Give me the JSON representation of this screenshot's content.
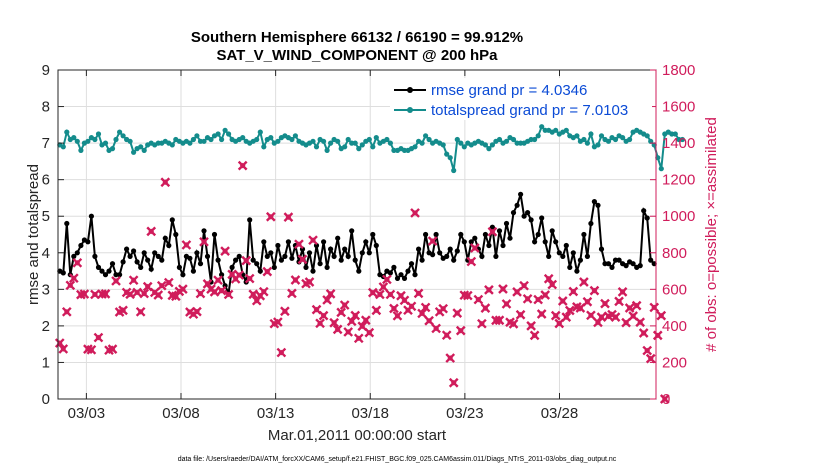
{
  "chart_data": {
    "type": "line",
    "title": "Southern Hemisphere 66132 / 66190 = 99.912%",
    "subtitle": "SAT_V_WIND_COMPONENT @ 200 hPa",
    "xlabel": "Mar.01,2011 00:00:00 start",
    "ylabel": "rmse and totalspread",
    "ylabel_right": "# of obs: o=possible; ×=assimilated",
    "footnote": "data file: /Users/raeder/DAI/ATM_forcXX/CAM6_setup/f.e21.FHIST_BGC.f09_025.CAM6assim.011/Diags_NTrS_2011-03/obs_diag_output.nc",
    "xlim": [
      1.5,
      33.1
    ],
    "ylim": [
      0,
      9
    ],
    "ylim_right": [
      0,
      1800
    ],
    "x_ticks": [
      3,
      8,
      13,
      18,
      23,
      28
    ],
    "x_tick_labels": [
      "03/03",
      "03/08",
      "03/13",
      "03/18",
      "03/23",
      "03/28"
    ],
    "y_ticks": [
      0,
      1,
      2,
      3,
      4,
      5,
      6,
      7,
      8,
      9
    ],
    "y_ticks_right": [
      0,
      200,
      400,
      600,
      800,
      1000,
      1200,
      1400,
      1600,
      1800
    ],
    "grid": true,
    "legend_position": "top-right",
    "colors": {
      "rmse": "#000000",
      "spread": "#148c8c",
      "obs": "#d01c5b",
      "axis": "#262626",
      "legend_text": "#0b4bd6"
    },
    "series": [
      {
        "name": "rmse grand pr = 4.0346",
        "axis": "left",
        "style": "line-marker",
        "values": [
          3.5,
          3.45,
          4.8,
          3.4,
          3.9,
          4.0,
          4.2,
          4.35,
          4.3,
          5.0,
          3.9,
          3.6,
          3.5,
          3.4,
          3.5,
          3.7,
          3.4,
          3.4,
          3.75,
          4.1,
          3.9,
          4.05,
          3.75,
          3.6,
          4.0,
          3.8,
          3.55,
          4.0,
          3.9,
          3.8,
          4.4,
          4.2,
          4.9,
          4.5,
          3.6,
          3.4,
          3.9,
          3.85,
          3.5,
          4.0,
          3.7,
          4.6,
          3.9,
          3.2,
          4.5,
          3.8,
          3.4,
          3.1,
          2.9,
          3.6,
          3.8,
          3.9,
          3.4,
          3.2,
          4.9,
          3.8,
          3.7,
          3.5,
          4.3,
          3.9,
          4.0,
          3.6,
          4.2,
          3.8,
          3.9,
          4.3,
          3.85,
          4.2,
          3.75,
          4.1,
          3.6,
          4.0,
          3.5,
          4.2,
          3.7,
          4.3,
          3.6,
          4.1,
          3.9,
          4.4,
          3.8,
          4.1,
          3.9,
          4.6,
          3.8,
          3.5,
          4.0,
          4.3,
          4.0,
          4.5,
          4.2,
          3.4,
          3.35,
          3.5,
          3.45,
          3.6,
          3.3,
          3.4,
          3.3,
          3.5,
          3.7,
          3.4,
          4.1,
          3.8,
          4.5,
          4.0,
          3.95,
          4.5,
          4.0,
          3.85,
          3.9,
          4.1,
          3.8,
          4.05,
          4.5,
          4.3,
          3.8,
          4.3,
          4.4,
          4.1,
          3.9,
          4.5,
          4.2,
          4.7,
          3.9,
          4.6,
          4.2,
          4.8,
          4.4,
          5.1,
          5.3,
          5.6,
          5.0,
          5.1,
          4.9,
          4.3,
          4.5,
          4.95,
          4.3,
          3.9,
          4.6,
          4.3,
          4.0,
          3.9,
          4.2,
          3.6,
          4.0,
          3.5,
          3.8,
          4.5,
          3.9,
          4.8,
          5.4,
          5.3,
          4.1,
          3.7,
          3.7,
          3.6,
          3.8,
          3.8,
          3.7,
          3.65,
          3.75,
          3.7,
          3.6,
          3.65,
          5.15,
          4.95,
          3.8,
          3.7
        ]
      },
      {
        "name": "totalspread grand pr = 7.0103",
        "axis": "left",
        "style": "line-marker",
        "values": [
          6.95,
          6.9,
          7.3,
          7.1,
          7.15,
          7.05,
          6.8,
          7.0,
          7.05,
          7.15,
          7.1,
          7.25,
          6.95,
          7.0,
          6.8,
          6.85,
          7.1,
          7.3,
          7.2,
          7.1,
          7.05,
          6.75,
          6.85,
          6.9,
          6.8,
          6.95,
          7.0,
          6.95,
          7.0,
          7.0,
          7.05,
          7.0,
          6.95,
          7.1,
          7.05,
          7.0,
          7.05,
          7.0,
          7.1,
          7.2,
          7.05,
          7.05,
          7.15,
          7.1,
          7.2,
          7.25,
          7.1,
          7.35,
          7.25,
          7.1,
          7.05,
          7.1,
          7.15,
          7.05,
          7.0,
          7.05,
          7.1,
          7.3,
          6.9,
          7.1,
          7.15,
          7.0,
          7.05,
          7.15,
          7.2,
          7.15,
          7.1,
          7.2,
          7.05,
          7.0,
          6.95,
          7.0,
          7.05,
          6.9,
          7.1,
          7.05,
          6.8,
          7.0,
          7.1,
          7.05,
          6.85,
          6.9,
          7.1,
          7.0,
          7.0,
          6.85,
          6.95,
          7.05,
          7.1,
          6.9,
          7.15,
          7.0,
          7.05,
          7.1,
          7.0,
          6.8,
          6.8,
          6.85,
          6.8,
          6.8,
          6.85,
          6.9,
          7.05,
          7.0,
          7.2,
          7.1,
          7.0,
          7.05,
          7.0,
          6.95,
          6.7,
          6.6,
          6.25,
          7.1,
          7.0,
          6.9,
          7.0,
          6.95,
          7.0,
          7.05,
          7.0,
          6.95,
          6.85,
          6.95,
          7.05,
          7.1,
          7.0,
          7.05,
          7.15,
          7.1,
          7.0,
          7.0,
          7.0,
          7.05,
          7.1,
          7.1,
          7.2,
          7.45,
          7.35,
          7.35,
          7.3,
          7.35,
          7.25,
          7.3,
          7.35,
          7.2,
          7.15,
          7.2,
          7.05,
          7.1,
          7.0,
          7.25,
          6.9,
          6.95,
          7.2,
          7.1,
          7.05,
          7.15,
          7.1,
          7.2,
          7.15,
          7.05,
          7.1,
          7.3,
          7.35,
          7.3,
          7.25,
          7.2,
          7.05,
          6.95,
          6.6,
          6.3,
          7.25,
          7.3,
          7.25,
          7.25,
          7.1,
          7.1
        ]
      },
      {
        "name": "obs assimilated",
        "axis": "right",
        "style": "markers",
        "values": [
          306,
          274,
          477,
          622,
          661,
          745,
          571,
          574,
          273,
          269,
          572,
          336,
          574,
          575,
          267,
          273,
          646,
          476,
          485,
          583,
          573,
          650,
          583,
          477,
          577,
          615,
          917,
          583,
          569,
          620,
          1186,
          637,
          567,
          562,
          589,
          601,
          843,
          476,
          464,
          478,
          577,
          860,
          630,
          601,
          586,
          650,
          593,
          809,
          572,
          682,
          657,
          678,
          1277,
          757,
          659,
          573,
          538,
          565,
          587,
          697,
          997,
          412,
          421,
          254,
          480,
          995,
          578,
          651,
          847,
          764,
          631,
          640,
          869,
          489,
          414,
          456,
          542,
          575,
          417,
          381,
          474,
          514,
          367,
          425,
          457,
          332,
          398,
          431,
          363,
          582,
          485,
          572,
          613,
          654,
          572,
          495,
          455,
          565,
          540,
          486,
          507,
          1018,
          578,
          468,
          501,
          428,
          864,
          386,
          477,
          494,
          349,
          224,
          89,
          470,
          374,
          568,
          566,
          752,
          826,
          544,
          412,
          497,
          597,
          915,
          430,
          431,
          602,
          520,
          420,
          411,
          586,
          461,
          620,
          548,
          400,
          348,
          544,
          465,
          569,
          658,
          626,
          456,
          413,
          536,
          448,
          484,
          588,
          504,
          498,
          640,
          532,
          458,
          593,
          419,
          448,
          522,
          453,
          462,
          448,
          534,
          586,
          418,
          498,
          454,
          511,
          420,
          361,
          265,
          221,
          501,
          348,
          456,
          0
        ]
      }
    ]
  }
}
